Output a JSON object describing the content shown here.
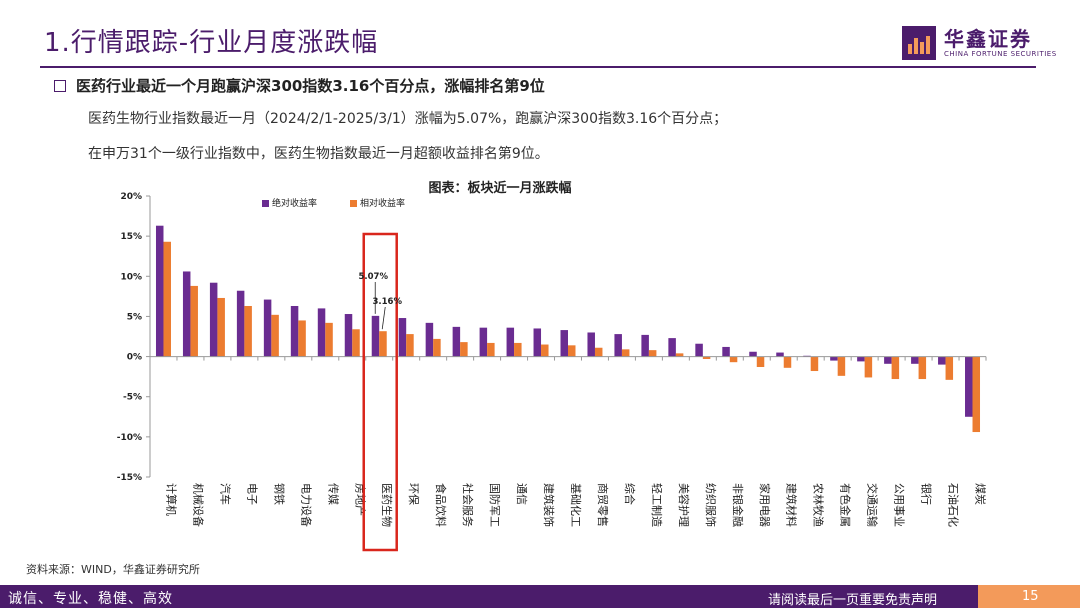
{
  "header": {
    "title": "1.行情跟踪-行业月度涨跌幅",
    "logo_cn": "华鑫证券",
    "logo_en": "CHINA FORTUNE SECURITIES"
  },
  "summary": {
    "heading": "医药行业最近一个月跑赢沪深300指数3.16个百分点，涨幅排名第9位",
    "para1": "医药生物行业指数最近一月（2024/2/1-2025/3/1）涨幅为5.07%，跑赢沪深300指数3.16个百分点；",
    "para2": "在申万31个一级行业指数中，医药生物指数最近一月超额收益排名第9位。"
  },
  "colors": {
    "primary": "#4b1c6b",
    "absolute": "#6a2c91",
    "relative": "#ec7c30",
    "highlight": "#d9261c",
    "accent": "#f39a5a"
  },
  "chart_data": {
    "type": "bar",
    "title": "图表：板块近一月涨跌幅",
    "categories": [
      "计算机",
      "机械设备",
      "汽车",
      "电子",
      "钢铁",
      "电力设备",
      "传媒",
      "房地产",
      "医药生物",
      "环保",
      "食品饮料",
      "社会服务",
      "国防军工",
      "通信",
      "建筑装饰",
      "基础化工",
      "商贸零售",
      "综合",
      "轻工制造",
      "美容护理",
      "纺织服饰",
      "非银金融",
      "家用电器",
      "建筑材料",
      "农林牧渔",
      "有色金属",
      "交通运输",
      "公用事业",
      "银行",
      "石油石化",
      "煤炭"
    ],
    "series": [
      {
        "name": "绝对收益率",
        "values": [
          16.3,
          10.6,
          9.2,
          8.2,
          7.1,
          6.3,
          6.0,
          5.3,
          5.07,
          4.8,
          4.2,
          3.7,
          3.6,
          3.6,
          3.5,
          3.3,
          3.0,
          2.8,
          2.7,
          2.3,
          1.6,
          1.2,
          0.6,
          0.5,
          0.1,
          -0.5,
          -0.6,
          -0.9,
          -0.9,
          -1.0,
          -7.5
        ]
      },
      {
        "name": "相对收益率",
        "values": [
          14.3,
          8.8,
          7.3,
          6.3,
          5.2,
          4.5,
          4.2,
          3.4,
          3.16,
          2.8,
          2.2,
          1.8,
          1.7,
          1.7,
          1.5,
          1.4,
          1.1,
          0.9,
          0.8,
          0.4,
          -0.3,
          -0.7,
          -1.3,
          -1.4,
          -1.8,
          -2.4,
          -2.6,
          -2.8,
          -2.8,
          -2.9,
          -9.4
        ]
      }
    ],
    "ylim": [
      -15,
      20
    ],
    "yticks": [
      20,
      15,
      10,
      5,
      0,
      -5,
      -10,
      -15
    ],
    "ytick_labels": [
      "20%",
      "15%",
      "10%",
      "5%",
      "0%",
      "-5%",
      "-10%",
      "-15%"
    ],
    "highlight_index": 8,
    "annotations": [
      "5.07%",
      "3.16%"
    ],
    "legend_position": "top-left"
  },
  "source": "资料来源：WIND，华鑫证券研究所",
  "footer": {
    "left": "诚信、专业、稳健、高效",
    "right": "请阅读最后一页重要免责声明",
    "page": "15"
  }
}
